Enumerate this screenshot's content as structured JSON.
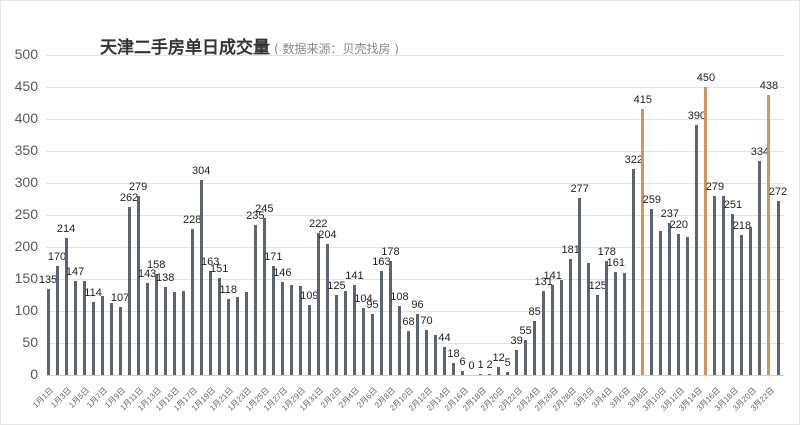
{
  "header": {
    "title": "天津二手房单日成交量",
    "subtitle": "( 数据来源：贝壳找房 )"
  },
  "colors": {
    "bar": "#5d6370",
    "highlight": "#d4935a",
    "grid": "#e3e3e3"
  },
  "chart_data": {
    "type": "bar",
    "title": "天津二手房单日成交量",
    "subtitle": "数据来源：贝壳找房",
    "xlabel": "",
    "ylabel": "",
    "ylim": [
      0,
      500
    ],
    "yticks": [
      0,
      50,
      100,
      150,
      200,
      250,
      300,
      350,
      400,
      450,
      500
    ],
    "grid": true,
    "categories": [
      "1月1日",
      "1月2日",
      "1月3日",
      "1月4日",
      "1月5日",
      "1月6日",
      "1月7日",
      "1月8日",
      "1月9日",
      "1月10日",
      "1月11日",
      "1月12日",
      "1月13日",
      "1月14日",
      "1月15日",
      "1月16日",
      "1月17日",
      "1月18日",
      "1月19日",
      "1月20日",
      "1月21日",
      "1月22日",
      "1月23日",
      "1月24日",
      "1月25日",
      "1月26日",
      "1月27日",
      "1月28日",
      "1月29日",
      "1月30日",
      "1月31日",
      "2月1日",
      "2月2日",
      "2月3日",
      "2月4日",
      "2月5日",
      "2月6日",
      "2月7日",
      "2月8日",
      "2月9日",
      "2月10日",
      "2月11日",
      "2月12日",
      "2月13日",
      "2月14日",
      "2月15日",
      "2月16日",
      "2月17日",
      "2月18日",
      "2月19日",
      "2月20日",
      "2月21日",
      "2月22日",
      "2月23日",
      "2月24日",
      "2月25日",
      "2月26日",
      "2月27日",
      "2月28日",
      "3月1日",
      "3月2日",
      "3月3日",
      "3月4日",
      "3月5日",
      "3月6日",
      "3月7日",
      "3月8日",
      "3月9日",
      "3月10日",
      "3月11日",
      "3月12日",
      "3月13日",
      "3月14日",
      "3月15日",
      "3月16日",
      "3月17日",
      "3月18日",
      "3月19日",
      "3月20日",
      "3月21日",
      "3月22日",
      "3月23日"
    ],
    "values": [
      135,
      170,
      214,
      147,
      147,
      114,
      124,
      113,
      107,
      262,
      279,
      143,
      158,
      138,
      130,
      132,
      228,
      304,
      163,
      151,
      118,
      122,
      129,
      235,
      245,
      171,
      146,
      140,
      139,
      109,
      222,
      204,
      125,
      132,
      141,
      104,
      95,
      163,
      178,
      108,
      68,
      96,
      70,
      63,
      44,
      18,
      6,
      0,
      1,
      2,
      12,
      5,
      39,
      55,
      85,
      131,
      141,
      148,
      181,
      277,
      175,
      125,
      178,
      161,
      159,
      322,
      415,
      259,
      225,
      237,
      220,
      216,
      390,
      450,
      279,
      280,
      251,
      218,
      232,
      334,
      438,
      272
    ],
    "labels": {
      "0": "135",
      "1": "170",
      "2": "214",
      "3": "147",
      "5": "114",
      "8": "107",
      "9": "262",
      "10": "279",
      "11": "143",
      "12": "158",
      "13": "138",
      "16": "228",
      "17": "304",
      "18": "163",
      "19": "151",
      "20": "118",
      "23": "235",
      "24": "245",
      "25": "171",
      "26": "146",
      "29": "109",
      "30": "222",
      "31": "204",
      "32": "125",
      "34": "141",
      "35": "104",
      "36": "95",
      "37": "163",
      "38": "178",
      "39": "108",
      "40": "68",
      "41": "96",
      "42": "70",
      "44": "44",
      "45": "18",
      "46": "6",
      "47": "0",
      "48": "1",
      "49": "2",
      "50": "12",
      "51": "5",
      "52": "39",
      "53": "55",
      "54": "85",
      "55": "131",
      "56": "141",
      "58": "181",
      "59": "277",
      "61": "125",
      "62": "178",
      "63": "161",
      "65": "322",
      "66": "415",
      "67": "259",
      "69": "237",
      "70": "220",
      "72": "390",
      "73": "450",
      "74": "279",
      "76": "251",
      "77": "218",
      "79": "334",
      "80": "438",
      "81": "272"
    },
    "highlighted_indices": [
      66,
      73,
      80
    ],
    "xtick_labels_shown": [
      "1月1日",
      "1月3日",
      "1月5日",
      "1月7日",
      "1月9日",
      "1月11日",
      "1月13日",
      "1月15日",
      "1月17日",
      "1月19日",
      "1月21日",
      "1月23日",
      "1月25日",
      "1月27日",
      "1月29日",
      "1月31日",
      "2月2日",
      "2月4日",
      "2月6日",
      "2月8日",
      "2月10日",
      "2月12日",
      "2月14日",
      "2月16日",
      "2月18日",
      "2月20日",
      "2月22日",
      "2月24日",
      "2月26日",
      "2月28日",
      "3月2日",
      "3月4日",
      "3月6日",
      "3月8日",
      "3月10日",
      "3月12日",
      "3月14日",
      "3月16日",
      "3月18日",
      "3月20日",
      "3月22日"
    ]
  }
}
